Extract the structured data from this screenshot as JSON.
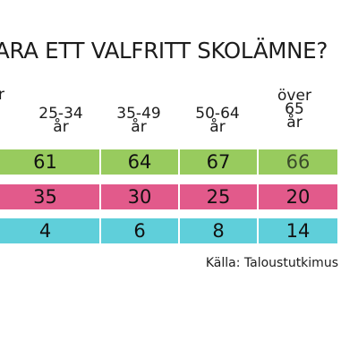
{
  "title": "ARA ETT VALFRITT SKOLÄMNE?",
  "stray_label": "r",
  "source": "Källa: Taloustutkimus",
  "colors": {
    "row1": "#98cb5e",
    "row2": "#e25a8b",
    "row3": "#5fcfda",
    "row1_last_text": "#3a4a2a",
    "separator": "#ffffff"
  },
  "chart_data": {
    "type": "table",
    "columns": [
      [
        "25-34",
        "år"
      ],
      [
        "35-49",
        "år"
      ],
      [
        "50-64",
        "år"
      ],
      [
        "över",
        "65",
        "år"
      ]
    ],
    "rows": [
      {
        "color": "#98cb5e",
        "values": [
          61,
          64,
          67,
          66
        ]
      },
      {
        "color": "#e25a8b",
        "values": [
          35,
          30,
          25,
          20
        ]
      },
      {
        "color": "#5fcfda",
        "values": [
          4,
          6,
          8,
          14
        ]
      }
    ]
  }
}
